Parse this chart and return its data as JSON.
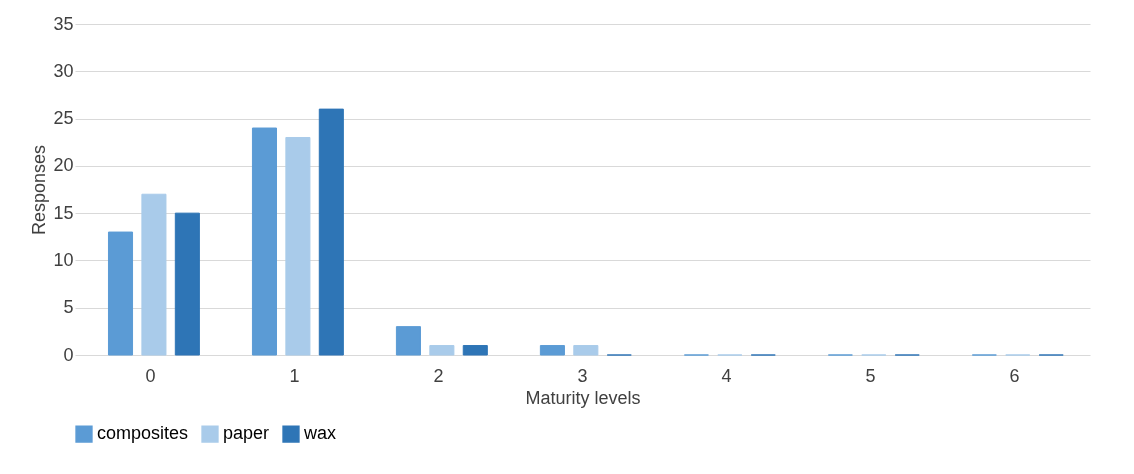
{
  "chart_data": {
    "type": "bar",
    "xlabel": "Maturity levels",
    "ylabel": "Responses",
    "categories": [
      "0",
      "1",
      "2",
      "3",
      "4",
      "5",
      "6"
    ],
    "series": [
      {
        "name": "composites",
        "color": "#5b9bd5",
        "values": [
          13,
          24,
          3,
          1,
          0,
          0,
          0
        ]
      },
      {
        "name": "paper",
        "color": "#a9cbea",
        "values": [
          17,
          23,
          1,
          1,
          0,
          0,
          0
        ]
      },
      {
        "name": "wax",
        "color": "#2e75b6",
        "values": [
          15,
          26,
          1,
          0,
          0,
          0,
          0
        ]
      }
    ],
    "ylim": [
      0,
      35
    ],
    "yticks": [
      0,
      5,
      10,
      15,
      20,
      25,
      30,
      35
    ],
    "grid": "y",
    "legend": "bottom"
  }
}
